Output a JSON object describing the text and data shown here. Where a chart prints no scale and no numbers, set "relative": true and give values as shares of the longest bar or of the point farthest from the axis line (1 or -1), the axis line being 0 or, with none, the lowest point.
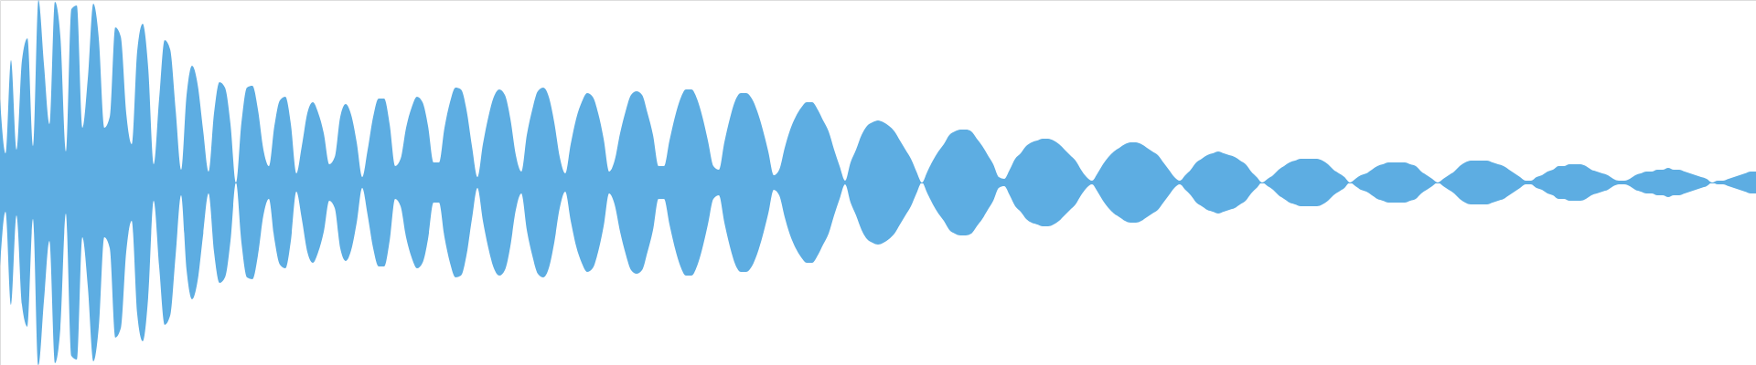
{
  "chart_data": {
    "type": "area",
    "relative": true,
    "tick_labels": false,
    "ref_lines": [
      {
        "axis": "y",
        "value": 0,
        "color": "#5dade2"
      }
    ],
    "categories": [
      null,
      null,
      null,
      null,
      null,
      null,
      null,
      null,
      null,
      null,
      null,
      null,
      null,
      null,
      null,
      null,
      null,
      null,
      null,
      null,
      null,
      null,
      null,
      null,
      null,
      null,
      null,
      null,
      null,
      null,
      null,
      null,
      null,
      null,
      null,
      null,
      null,
      null,
      null,
      null,
      null,
      null,
      null,
      null,
      null,
      null,
      null,
      null,
      null,
      null,
      null,
      null,
      null,
      null,
      null,
      null,
      null,
      null,
      null,
      null,
      null,
      null,
      null,
      null,
      null,
      null,
      null,
      null,
      null,
      null,
      null,
      null,
      null,
      null,
      null,
      null,
      null,
      null,
      null,
      null,
      null,
      null,
      null,
      null,
      null,
      null,
      null,
      null,
      null,
      null,
      null,
      null,
      null,
      null,
      null,
      null,
      null,
      null,
      null,
      null,
      null,
      null,
      null,
      null,
      null,
      null,
      null,
      null,
      null,
      null,
      null,
      null,
      null,
      null,
      null,
      null,
      null,
      null,
      null,
      null,
      null,
      null,
      null,
      null,
      null,
      null,
      null,
      null,
      null,
      null,
      null,
      null,
      null,
      null,
      null,
      null,
      null,
      null,
      null,
      null,
      null,
      null,
      null,
      null,
      null,
      null,
      null,
      null,
      null,
      null,
      null,
      null,
      null,
      null,
      null,
      null,
      null,
      null,
      null,
      null,
      null,
      null,
      null,
      null,
      null,
      null,
      null,
      null,
      null,
      null,
      null,
      null,
      null,
      null,
      null,
      null,
      null,
      null,
      null,
      null,
      null,
      null,
      null,
      null,
      null,
      null,
      null,
      null,
      null,
      null,
      null,
      null,
      null,
      null,
      null,
      null,
      null,
      null,
      null,
      null,
      null,
      null,
      null,
      null,
      null,
      null,
      null,
      null,
      null,
      null,
      null,
      null,
      null,
      null,
      null,
      null,
      null,
      null,
      null,
      null,
      null,
      null,
      null,
      null,
      null,
      null,
      null,
      null,
      null,
      null,
      null,
      null,
      null,
      null,
      null,
      null,
      null,
      null,
      null,
      null,
      null,
      null,
      null,
      null,
      null,
      null,
      null,
      null,
      null,
      null,
      null,
      null,
      null,
      null,
      null,
      null,
      null,
      null,
      null,
      null,
      null,
      null,
      null,
      null,
      null,
      null,
      null,
      null,
      null,
      null,
      null,
      null,
      null,
      null,
      null,
      null,
      null,
      null,
      null,
      null,
      null,
      null,
      null,
      null,
      null,
      null,
      null,
      null,
      null,
      null,
      null,
      null,
      null,
      null,
      null,
      null,
      null,
      null,
      null,
      null,
      null,
      null,
      null,
      null,
      null,
      null,
      null,
      null,
      null,
      null,
      null,
      null,
      null,
      null,
      null,
      null,
      null,
      null,
      null,
      null,
      null
    ],
    "series": [
      {
        "color": "#5dade2",
        "values": [
          0.46,
          0.16,
          0.67,
          0.18,
          0.67,
          0.79,
          0.2,
          1.0,
          0.65,
          0.32,
          0.99,
          0.8,
          0.17,
          0.95,
          0.97,
          0.3,
          0.57,
          0.98,
          0.79,
          0.3,
          0.36,
          0.85,
          0.8,
          0.38,
          0.21,
          0.72,
          0.87,
          0.63,
          0.1,
          0.46,
          0.78,
          0.73,
          0.4,
          0.07,
          0.48,
          0.64,
          0.54,
          0.29,
          0.06,
          0.38,
          0.55,
          0.52,
          0.32,
          0.0,
          0.33,
          0.52,
          0.53,
          0.4,
          0.18,
          0.09,
          0.31,
          0.45,
          0.47,
          0.32,
          0.05,
          0.2,
          0.38,
          0.44,
          0.38,
          0.27,
          0.1,
          0.14,
          0.36,
          0.43,
          0.37,
          0.22,
          0.03,
          0.18,
          0.36,
          0.46,
          0.46,
          0.32,
          0.09,
          0.13,
          0.3,
          0.41,
          0.47,
          0.44,
          0.31,
          0.11,
          0.11,
          0.3,
          0.44,
          0.52,
          0.51,
          0.4,
          0.2,
          0.03,
          0.21,
          0.36,
          0.47,
          0.51,
          0.48,
          0.35,
          0.15,
          0.06,
          0.26,
          0.4,
          0.5,
          0.52,
          0.47,
          0.33,
          0.14,
          0.05,
          0.21,
          0.35,
          0.44,
          0.49,
          0.47,
          0.38,
          0.24,
          0.06,
          0.12,
          0.27,
          0.39,
          0.48,
          0.5,
          0.48,
          0.38,
          0.26,
          0.09,
          0.09,
          0.23,
          0.36,
          0.46,
          0.51,
          0.51,
          0.46,
          0.36,
          0.23,
          0.09,
          0.07,
          0.22,
          0.35,
          0.45,
          0.49,
          0.49,
          0.46,
          0.39,
          0.29,
          0.17,
          0.04,
          0.07,
          0.19,
          0.29,
          0.36,
          0.41,
          0.44,
          0.44,
          0.4,
          0.34,
          0.28,
          0.18,
          0.09,
          0.01,
          0.11,
          0.18,
          0.26,
          0.31,
          0.33,
          0.34,
          0.33,
          0.31,
          0.28,
          0.23,
          0.18,
          0.13,
          0.06,
          0.0,
          0.06,
          0.12,
          0.17,
          0.21,
          0.26,
          0.28,
          0.29,
          0.29,
          0.28,
          0.24,
          0.2,
          0.15,
          0.1,
          0.03,
          0.02,
          0.07,
          0.13,
          0.16,
          0.2,
          0.22,
          0.23,
          0.24,
          0.24,
          0.23,
          0.21,
          0.18,
          0.15,
          0.12,
          0.07,
          0.03,
          0.01,
          0.05,
          0.1,
          0.14,
          0.17,
          0.19,
          0.21,
          0.22,
          0.22,
          0.21,
          0.19,
          0.17,
          0.15,
          0.11,
          0.07,
          0.03,
          0.01,
          0.04,
          0.07,
          0.11,
          0.13,
          0.15,
          0.16,
          0.17,
          0.16,
          0.15,
          0.14,
          0.12,
          0.1,
          0.06,
          0.03,
          0.0,
          0.02,
          0.04,
          0.07,
          0.09,
          0.11,
          0.12,
          0.13,
          0.13,
          0.13,
          0.13,
          0.12,
          0.1,
          0.07,
          0.05,
          0.03,
          0.0,
          0.02,
          0.04,
          0.05,
          0.07,
          0.09,
          0.1,
          0.11,
          0.11,
          0.11,
          0.11,
          0.1,
          0.09,
          0.06,
          0.04,
          0.02,
          0.0,
          0.02,
          0.04,
          0.06,
          0.09,
          0.11,
          0.12,
          0.12,
          0.12,
          0.12,
          0.11,
          0.1,
          0.09,
          0.07,
          0.05,
          0.03,
          0.01,
          0.01,
          0.03,
          0.04,
          0.06,
          0.07,
          0.09,
          0.09,
          0.1,
          0.1,
          0.1,
          0.09,
          0.07,
          0.06,
          0.05,
          0.04,
          0.02,
          0.01,
          0.01,
          0.02,
          0.04,
          0.05,
          0.06,
          0.06,
          0.07,
          0.07,
          0.08,
          0.07,
          0.07,
          0.06,
          0.05,
          0.04,
          0.03,
          0.02,
          0.0,
          0.01,
          0.01,
          0.02,
          0.03,
          0.04,
          0.05,
          0.06,
          0.06
        ]
      },
      {
        "color": "#5dade2",
        "values": [
          -0.46,
          -0.16,
          -0.67,
          -0.18,
          -0.67,
          -0.79,
          -0.2,
          -1.0,
          -0.65,
          -0.32,
          -0.99,
          -0.8,
          -0.17,
          -0.95,
          -0.97,
          -0.3,
          -0.57,
          -0.98,
          -0.79,
          -0.3,
          -0.36,
          -0.85,
          -0.8,
          -0.38,
          -0.21,
          -0.72,
          -0.87,
          -0.63,
          -0.1,
          -0.46,
          -0.78,
          -0.73,
          -0.4,
          -0.07,
          -0.48,
          -0.64,
          -0.54,
          -0.29,
          -0.06,
          -0.38,
          -0.55,
          -0.52,
          -0.32,
          0.0,
          -0.33,
          -0.52,
          -0.53,
          -0.4,
          -0.18,
          -0.09,
          -0.31,
          -0.45,
          -0.47,
          -0.32,
          -0.05,
          -0.2,
          -0.38,
          -0.44,
          -0.38,
          -0.27,
          -0.1,
          -0.14,
          -0.36,
          -0.43,
          -0.37,
          -0.22,
          -0.03,
          -0.18,
          -0.36,
          -0.46,
          -0.46,
          -0.32,
          -0.09,
          -0.13,
          -0.3,
          -0.41,
          -0.47,
          -0.44,
          -0.31,
          -0.11,
          -0.11,
          -0.3,
          -0.44,
          -0.52,
          -0.51,
          -0.4,
          -0.2,
          -0.03,
          -0.21,
          -0.36,
          -0.47,
          -0.51,
          -0.48,
          -0.35,
          -0.15,
          -0.06,
          -0.26,
          -0.4,
          -0.5,
          -0.52,
          -0.47,
          -0.33,
          -0.14,
          -0.05,
          -0.21,
          -0.35,
          -0.44,
          -0.49,
          -0.47,
          -0.38,
          -0.24,
          -0.06,
          -0.12,
          -0.27,
          -0.39,
          -0.48,
          -0.5,
          -0.48,
          -0.38,
          -0.26,
          -0.09,
          -0.09,
          -0.23,
          -0.36,
          -0.46,
          -0.51,
          -0.51,
          -0.46,
          -0.36,
          -0.23,
          -0.09,
          -0.07,
          -0.22,
          -0.35,
          -0.45,
          -0.49,
          -0.49,
          -0.46,
          -0.39,
          -0.29,
          -0.17,
          -0.04,
          -0.07,
          -0.19,
          -0.29,
          -0.36,
          -0.41,
          -0.44,
          -0.44,
          -0.4,
          -0.34,
          -0.28,
          -0.18,
          -0.09,
          -0.01,
          -0.11,
          -0.18,
          -0.26,
          -0.31,
          -0.33,
          -0.34,
          -0.33,
          -0.31,
          -0.28,
          -0.23,
          -0.18,
          -0.13,
          -0.06,
          0.0,
          -0.06,
          -0.12,
          -0.17,
          -0.21,
          -0.26,
          -0.28,
          -0.29,
          -0.29,
          -0.28,
          -0.24,
          -0.2,
          -0.15,
          -0.1,
          -0.03,
          -0.02,
          -0.07,
          -0.13,
          -0.16,
          -0.2,
          -0.22,
          -0.23,
          -0.24,
          -0.24,
          -0.23,
          -0.21,
          -0.18,
          -0.15,
          -0.12,
          -0.07,
          -0.03,
          -0.01,
          -0.05,
          -0.1,
          -0.14,
          -0.17,
          -0.19,
          -0.21,
          -0.22,
          -0.22,
          -0.21,
          -0.19,
          -0.17,
          -0.15,
          -0.11,
          -0.07,
          -0.03,
          -0.01,
          -0.04,
          -0.07,
          -0.11,
          -0.13,
          -0.15,
          -0.16,
          -0.17,
          -0.16,
          -0.15,
          -0.14,
          -0.12,
          -0.1,
          -0.06,
          -0.03,
          0.0,
          -0.02,
          -0.04,
          -0.07,
          -0.09,
          -0.11,
          -0.12,
          -0.13,
          -0.13,
          -0.13,
          -0.13,
          -0.12,
          -0.1,
          -0.07,
          -0.05,
          -0.03,
          0.0,
          -0.02,
          -0.04,
          -0.05,
          -0.07,
          -0.09,
          -0.1,
          -0.11,
          -0.11,
          -0.11,
          -0.11,
          -0.1,
          -0.09,
          -0.06,
          -0.04,
          -0.02,
          0.0,
          -0.02,
          -0.04,
          -0.06,
          -0.09,
          -0.11,
          -0.12,
          -0.12,
          -0.12,
          -0.12,
          -0.11,
          -0.1,
          -0.09,
          -0.07,
          -0.05,
          -0.03,
          -0.01,
          -0.01,
          -0.03,
          -0.04,
          -0.06,
          -0.07,
          -0.09,
          -0.09,
          -0.1,
          -0.1,
          -0.1,
          -0.09,
          -0.07,
          -0.06,
          -0.05,
          -0.04,
          -0.02,
          -0.01,
          -0.01,
          -0.02,
          -0.04,
          -0.05,
          -0.06,
          -0.06,
          -0.07,
          -0.07,
          -0.08,
          -0.07,
          -0.07,
          -0.06,
          -0.05,
          -0.04,
          -0.03,
          -0.02,
          0.0,
          -0.01,
          -0.01,
          -0.02,
          -0.03,
          -0.04,
          -0.05,
          -0.06,
          -0.06
        ]
      }
    ]
  }
}
